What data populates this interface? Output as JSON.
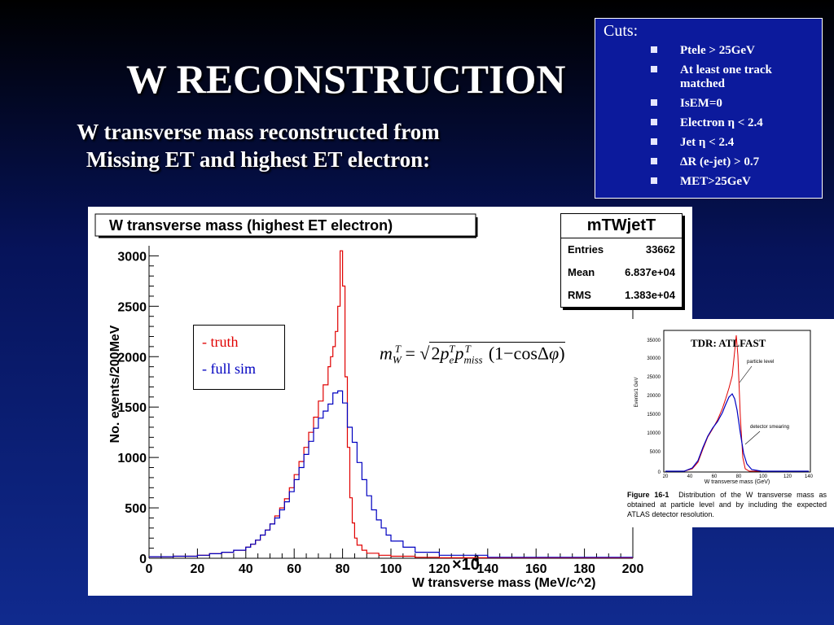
{
  "slide": {
    "title": "W RECONSTRUCTION",
    "subtitle_line1": "W transverse mass reconstructed from",
    "subtitle_line2": "Missing ET and highest ET electron:"
  },
  "cuts": {
    "heading": "Cuts:",
    "items": [
      "Ptele > 25GeV",
      "At least one track matched",
      "IsEM=0",
      "Electron η < 2.4",
      "Jet η < 2.4",
      "ΔR (e-jet) > 0.7",
      "MET>25GeV"
    ]
  },
  "stats": {
    "name": "mTWjetT",
    "entries_label": "Entries",
    "entries": "33662",
    "mean_label": "Mean",
    "mean": "6.837e+04",
    "rms_label": "RMS",
    "rms": "1.383e+04"
  },
  "legend": {
    "truth": "- truth",
    "fullsim": "- full sim"
  },
  "colors": {
    "truth": "#e00000",
    "fullsim": "#0000c0",
    "slide_background": "#0c1a9c"
  },
  "chart_data": {
    "type": "line",
    "title": "W transverse mass (highest ET electron)",
    "xlabel": "W transverse mass (MeV/c^2)",
    "ylabel": "No. events/200MeV",
    "x_multiplier_label": "×10",
    "x_multiplier_exp": "3",
    "xlim": [
      0,
      200
    ],
    "ylim": [
      0,
      3100
    ],
    "x_ticks": [
      0,
      20,
      40,
      60,
      80,
      100,
      120,
      140,
      160,
      180,
      200
    ],
    "y_ticks": [
      0,
      500,
      1000,
      1500,
      2000,
      2500,
      3000
    ],
    "y_tick_labels": [
      "0",
      "500",
      "1000",
      "1500",
      "2000",
      "2500",
      "3000"
    ],
    "legend_position": "upper-left",
    "series": [
      {
        "name": "truth",
        "x": [
          0,
          10,
          20,
          25,
          30,
          35,
          40,
          42,
          44,
          46,
          48,
          50,
          52,
          54,
          56,
          58,
          60,
          62,
          64,
          66,
          68,
          70,
          72,
          74,
          75,
          76,
          77,
          78,
          79,
          80,
          81,
          82,
          83,
          84,
          85,
          86,
          88,
          90,
          95,
          100,
          110,
          120,
          200
        ],
        "y": [
          15,
          20,
          30,
          45,
          60,
          80,
          110,
          140,
          180,
          230,
          280,
          340,
          420,
          500,
          590,
          700,
          830,
          960,
          1100,
          1250,
          1400,
          1560,
          1720,
          1900,
          2000,
          2100,
          2250,
          2500,
          3050,
          2700,
          1800,
          1100,
          600,
          350,
          200,
          130,
          80,
          50,
          30,
          20,
          10,
          5,
          0
        ]
      },
      {
        "name": "full sim",
        "x": [
          0,
          10,
          20,
          25,
          30,
          35,
          40,
          42,
          44,
          46,
          48,
          50,
          52,
          54,
          56,
          58,
          60,
          62,
          64,
          66,
          68,
          70,
          72,
          74,
          76,
          78,
          80,
          82,
          84,
          86,
          88,
          90,
          92,
          94,
          96,
          98,
          100,
          105,
          110,
          120,
          140,
          200
        ],
        "y": [
          15,
          20,
          30,
          45,
          60,
          80,
          110,
          140,
          180,
          230,
          280,
          340,
          400,
          480,
          560,
          660,
          780,
          900,
          1030,
          1160,
          1290,
          1390,
          1460,
          1530,
          1640,
          1660,
          1540,
          1300,
          1150,
          950,
          780,
          620,
          480,
          380,
          300,
          230,
          170,
          110,
          60,
          30,
          10,
          0
        ]
      }
    ]
  },
  "inset": {
    "label": "TDR: ATLFAST",
    "ylabel": "Events/1 GeV",
    "xlabel": "W transverse mass (GeV)",
    "annotation_particle": "particle level",
    "annotation_detector": "detector smearing",
    "y_tick_labels": [
      "35000",
      "30000",
      "25000",
      "20000",
      "15000",
      "10000",
      "5000",
      "0"
    ],
    "x_tick_labels": [
      "20",
      "40",
      "60",
      "80",
      "100",
      "120",
      "140"
    ],
    "caption_lead": "Figure 16-1",
    "caption_text": "Distribution of the W transverse mass as obtained at particle level and by including the expected ATLAS detector resolution."
  }
}
